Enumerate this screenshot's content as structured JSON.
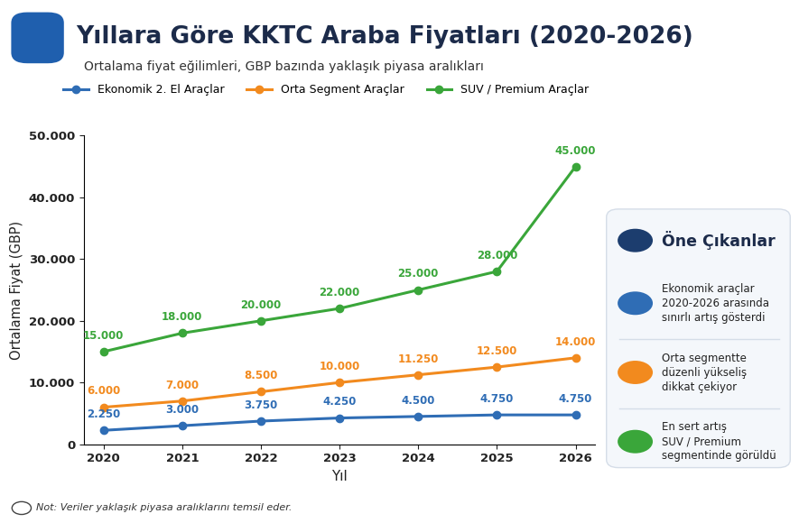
{
  "chart_data": {
    "type": "line",
    "title": "Yıllara Göre KKTC Araba Fiyatları (2020-2026)",
    "subtitle": "Ortalama fiyat eğilimleri, GBP bazında yaklaşık piyasa aralıkları",
    "x_label": "Yıl",
    "y_label": "Ortalama Fiyat (GBP)",
    "categories": [
      "2020",
      "2021",
      "2022",
      "2023",
      "2024",
      "2025",
      "2026"
    ],
    "series": [
      {
        "name": "Ekonomik 2. El Araçlar",
        "color": "#2f6db5",
        "marker": "o",
        "line_style": "solid",
        "values": [
          2250,
          3000,
          3750,
          4250,
          4500,
          4750,
          4750
        ],
        "value_labels": [
          "2.250",
          "3.000",
          "3.750",
          "4.250",
          "4.500",
          "4.750",
          "4.750"
        ]
      },
      {
        "name": "Orta Segment Araçlar",
        "color": "#f28a1e",
        "marker": "o",
        "line_style": "solid",
        "values": [
          6000,
          7000,
          8500,
          10000,
          11250,
          12500,
          14000
        ],
        "value_labels": [
          "6.000",
          "7.000",
          "8.500",
          "10.000",
          "11.250",
          "12.500",
          "14.000"
        ]
      },
      {
        "name": "SUV / Premium Araçlar",
        "color": "#3aa63a",
        "marker": "o",
        "line_style": "solid",
        "values": [
          15000,
          18000,
          20000,
          22000,
          25000,
          28000,
          45000
        ],
        "value_labels": [
          "15.000",
          "18.000",
          "20.000",
          "22.000",
          "25.000",
          "28.000",
          "45.000"
        ]
      }
    ],
    "ylim": [
      0,
      50000
    ],
    "yticks": [
      0,
      {
        "value": 10000,
        "label": "10.000"
      },
      {
        "value": 20000,
        "label": "20.000"
      },
      {
        "value": 30000,
        "label": "30.000"
      },
      {
        "value": 40000,
        "label": "40.000"
      },
      {
        "value": 50000,
        "label": "50.000"
      }
    ],
    "grid": false,
    "legend": "upper left",
    "data_labels": true,
    "highlights_title": "Öne Çıkanlar",
    "highlights": [
      "Ekonomik araçlar\n2020-2026 arasında\nsınırlı artış gösterdi",
      "Orta segmentte\ndüzenli yükseliş\ndikkat çekiyor",
      "En sert artış\nSUV / Premium\nsegmentinde görüldü"
    ],
    "note": "Not: Veriler yaklaşık piyasa aralıklarını temsil eder."
  }
}
